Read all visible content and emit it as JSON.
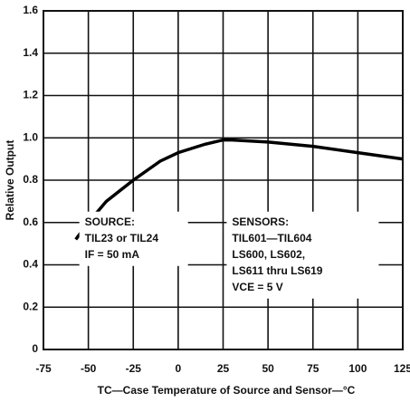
{
  "chart_data": {
    "type": "line",
    "xlabel": "TC—Case Temperature of Source and Sensor—°C",
    "ylabel": "Relative Output",
    "x": [
      -57,
      -50,
      -40,
      -25,
      -10,
      0,
      15,
      25,
      30,
      50,
      75,
      100,
      125
    ],
    "series": [
      {
        "name": null,
        "color": "#000000",
        "values": [
          0.52,
          0.6,
          0.7,
          0.8,
          0.89,
          0.93,
          0.97,
          0.99,
          0.99,
          0.98,
          0.96,
          0.93,
          0.9
        ]
      }
    ],
    "xlim": [
      -75,
      125
    ],
    "xticks": [
      -75,
      -50,
      -25,
      0,
      25,
      50,
      75,
      100,
      125
    ],
    "ylim": [
      0,
      1.6
    ],
    "yticks": [
      0,
      0.2,
      0.4,
      0.6,
      0.8,
      {
        "value": 1,
        "label": "1.0"
      },
      1.2,
      1.4,
      1.6
    ],
    "grid": true,
    "annotations": [
      [
        "SOURCE:",
        "TIL23 or TIL24",
        "IF = 50 mA"
      ],
      [
        "SENSORS:",
        "TIL601—TIL604",
        "LS600, LS602,",
        "LS611 thru LS619",
        "VCE = 5 V"
      ]
    ]
  }
}
